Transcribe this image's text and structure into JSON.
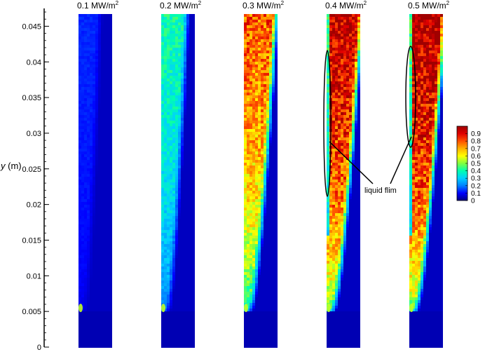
{
  "chart_data": {
    "type": "heatmap",
    "title": "",
    "xlabel": "",
    "ylabel": {
      "symbol": "y",
      "unit": " (m)"
    },
    "ylim": [
      0,
      0.0475
    ],
    "y_ticks": [
      "0.045",
      "0.04",
      "0.035",
      "0.03",
      "0.025",
      "0.02",
      "0.015",
      "0.01",
      "0.005",
      "0"
    ],
    "y_tick_values": [
      0.045,
      0.04,
      0.035,
      0.03,
      0.025,
      0.02,
      0.015,
      0.01,
      0.005,
      0
    ],
    "panels": [
      {
        "label_value": "0.1 MW/m",
        "label_exp": "2",
        "heat_flux": 0.1,
        "onset_y": 0.0055,
        "peak_fraction": 0.08
      },
      {
        "label_value": "0.2 MW/m",
        "label_exp": "2",
        "heat_flux": 0.2,
        "onset_y": 0.0055,
        "peak_fraction": 0.35
      },
      {
        "label_value": "0.3 MW/m",
        "label_exp": "2",
        "heat_flux": 0.3,
        "onset_y": 0.0055,
        "peak_fraction": 0.75
      },
      {
        "label_value": "0.4 MW/m",
        "label_exp": "2",
        "heat_flux": 0.4,
        "onset_y": 0.0055,
        "peak_fraction": 0.92
      },
      {
        "label_value": "0.5 MW/m",
        "label_exp": "2",
        "heat_flux": 0.5,
        "onset_y": 0.0055,
        "peak_fraction": 0.95
      }
    ],
    "colorbar": {
      "ticks": [
        "0.9",
        "0.8",
        "0.7",
        "0.6",
        "0.5",
        "0.4",
        "0.3",
        "0.2",
        "0.1",
        "0"
      ],
      "tick_values": [
        0.9,
        0.8,
        0.7,
        0.6,
        0.5,
        0.4,
        0.3,
        0.2,
        0.1,
        0
      ],
      "range": [
        0,
        1
      ],
      "colors": [
        "#000080",
        "#0000ff",
        "#0080ff",
        "#00d0ff",
        "#00ffb0",
        "#80ff40",
        "#ffff00",
        "#ffb000",
        "#ff5000",
        "#e00000",
        "#a00000"
      ]
    },
    "annotation": {
      "text": "liquid flim"
    }
  }
}
